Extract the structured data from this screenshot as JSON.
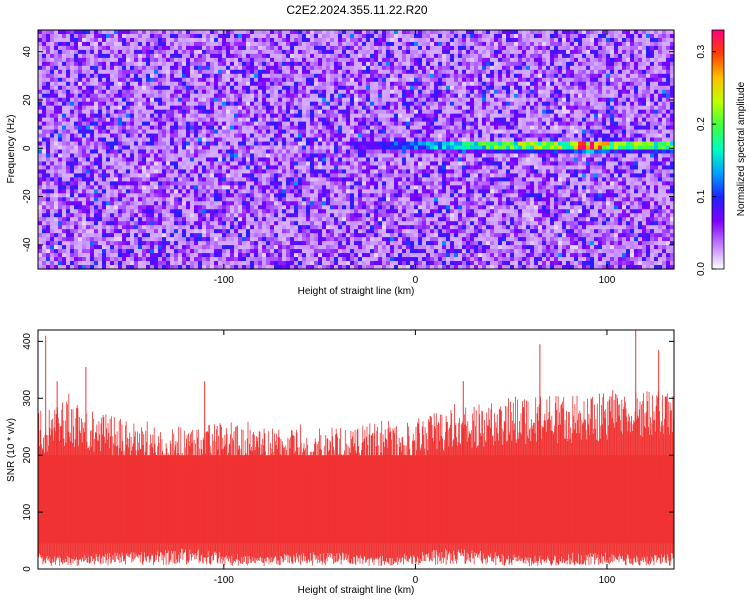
{
  "figure": {
    "title": "C2E2.2024.355.11.22.R20"
  },
  "chart_data": [
    {
      "type": "heatmap",
      "panel": "spectrogram",
      "xlabel": "Height of straight line (km)",
      "ylabel": "Frequency (Hz)",
      "xlim": [
        -197,
        135
      ],
      "ylim": [
        -50,
        49
      ],
      "xticks": [
        -100,
        0,
        100
      ],
      "yticks": [
        -40,
        -20,
        0,
        20,
        40
      ],
      "xtick_labels": [
        "-100",
        "0",
        "100"
      ],
      "ytick_labels": [
        "-40",
        "-20",
        "0",
        "20",
        "40"
      ],
      "colorbar": {
        "label": "Normalized spectral amplitude",
        "range": [
          0,
          0.33
        ],
        "ticks": [
          0.0,
          0.1,
          0.2,
          0.3
        ],
        "tick_labels": [
          "0.0",
          "0.1",
          "0.2",
          "0.3"
        ],
        "colormap": [
          "#ffffff",
          "#c080ff",
          "#8000ff",
          "#2020ff",
          "#00a0ff",
          "#00ffc0",
          "#40ff40",
          "#c0ff00",
          "#ffc000",
          "#ff4000",
          "#ff0080"
        ]
      },
      "signal": {
        "description_visible": "Horizontal bright streak near 0 Hz",
        "x_start": -35,
        "x_end": 135,
        "freq": 1,
        "peak_amplitude": 0.3,
        "peak_x": 92,
        "background_amplitude": 0.06
      }
    },
    {
      "type": "area",
      "panel": "snr",
      "xlabel": "Height of straight line (km)",
      "ylabel": "SNR (10 * v/v)",
      "xlim": [
        -197,
        135
      ],
      "ylim": [
        0,
        420
      ],
      "xticks": [
        -100,
        0,
        100
      ],
      "yticks": [
        0,
        100,
        200,
        300,
        400
      ],
      "xtick_labels": [
        "-100",
        "0",
        "100"
      ],
      "ytick_labels": [
        "0",
        "100",
        "200",
        "300",
        "400"
      ],
      "color": "#f03232",
      "envelope": {
        "x": [
          -197,
          -180,
          -160,
          -140,
          -120,
          -100,
          -80,
          -60,
          -40,
          -20,
          0,
          20,
          40,
          60,
          80,
          100,
          120,
          135
        ],
        "upper": [
          280,
          300,
          270,
          250,
          250,
          260,
          250,
          245,
          255,
          260,
          265,
          290,
          300,
          305,
          305,
          310,
          315,
          320
        ],
        "lower": [
          20,
          15,
          20,
          20,
          25,
          20,
          15,
          20,
          20,
          15,
          20,
          25,
          20,
          15,
          20,
          20,
          15,
          20
        ]
      },
      "spikes": [
        {
          "x": -193,
          "y": 410
        },
        {
          "x": -187,
          "y": 330
        },
        {
          "x": -172,
          "y": 355
        },
        {
          "x": -110,
          "y": 330
        },
        {
          "x": 25,
          "y": 330
        },
        {
          "x": 65,
          "y": 395
        },
        {
          "x": 115,
          "y": 420
        },
        {
          "x": 127,
          "y": 385
        }
      ]
    }
  ]
}
